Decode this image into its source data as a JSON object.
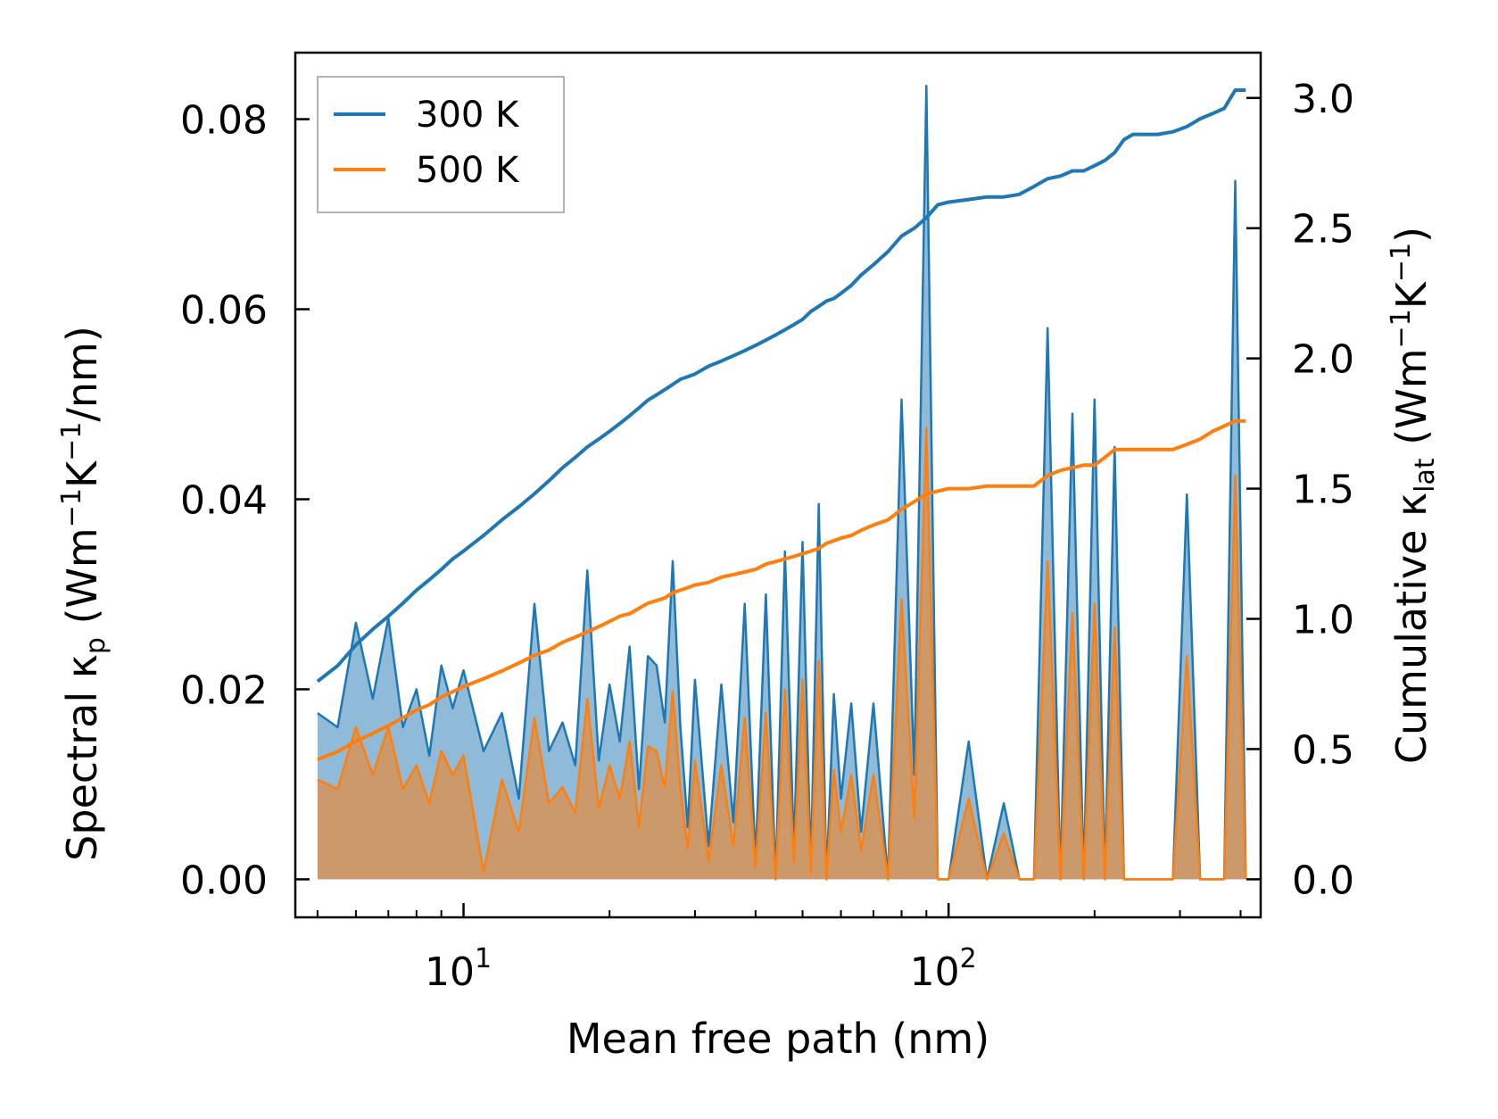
{
  "chart_data": {
    "type": "area",
    "xscale": "log",
    "xlim": [
      4.5,
      440
    ],
    "ylim_left": [
      -0.004,
      0.087
    ],
    "ylim_right": [
      -0.146,
      3.174
    ],
    "xlabel": "Mean free path (nm)",
    "ylabel_left": {
      "main": "Spectral κ",
      "sub": "p",
      "unit_pre": " (Wm",
      "exp1": "−1",
      "mid": "K",
      "exp2": "−1",
      "unit_post": "/nm)"
    },
    "ylabel_right": {
      "main": "Cumulative κ",
      "sub": "lat",
      "unit_pre": " (Wm",
      "exp1": "−1",
      "mid": "K",
      "exp2": "−1",
      "unit_post": ")"
    },
    "x_ticks": [
      {
        "value": 10,
        "base": "10",
        "exp": "1"
      },
      {
        "value": 100,
        "base": "10",
        "exp": "2"
      }
    ],
    "y_ticks_left": [
      "0.00",
      "0.02",
      "0.04",
      "0.06",
      "0.08"
    ],
    "y_ticks_right": [
      "0.0",
      "0.5",
      "1.0",
      "1.5",
      "2.0",
      "2.5",
      "3.0"
    ],
    "legend": {
      "position": "top-left",
      "entries": [
        {
          "label": "300 K",
          "color": "#1f77b4"
        },
        {
          "label": "500 K",
          "color": "#ff7f0e"
        }
      ]
    },
    "x": [
      5.0,
      5.5,
      6.0,
      6.5,
      7.0,
      7.5,
      8.0,
      8.5,
      9.0,
      9.5,
      10.0,
      11.0,
      12.0,
      13.0,
      14.0,
      15.0,
      16.0,
      17.0,
      18.0,
      19.0,
      20.0,
      21.0,
      22.0,
      23.0,
      24.0,
      25.0,
      26.0,
      27.0,
      28.0,
      29.0,
      30.0,
      32.0,
      34.0,
      36.0,
      38.0,
      40.0,
      42.0,
      44.0,
      46.0,
      48.0,
      50.0,
      52.0,
      54.0,
      56.0,
      58.0,
      60.0,
      63.0,
      66.0,
      70.0,
      75.0,
      80.0,
      85.0,
      90.0,
      95.0,
      100.0,
      110.0,
      120.0,
      130.0,
      140.0,
      150.0,
      160.0,
      170.0,
      180.0,
      190.0,
      200.0,
      210.0,
      220.0,
      230.0,
      240.0,
      250.0,
      270.0,
      290.0,
      310.0,
      330.0,
      350.0,
      370.0,
      390.0,
      410.0
    ],
    "series": [
      {
        "name": "300 K",
        "color": "#1f77b4",
        "spectral": [
          0.0175,
          0.016,
          0.027,
          0.019,
          0.0275,
          0.016,
          0.02,
          0.013,
          0.0225,
          0.018,
          0.022,
          0.0135,
          0.0175,
          0.0085,
          0.029,
          0.0135,
          0.0165,
          0.012,
          0.0325,
          0.0125,
          0.0205,
          0.0145,
          0.0245,
          0.0095,
          0.0235,
          0.0225,
          0.0165,
          0.0335,
          0.016,
          0.0055,
          0.021,
          0.0035,
          0.0205,
          0.006,
          0.029,
          0.002,
          0.03,
          0.0,
          0.0345,
          0.003,
          0.0355,
          0.001,
          0.0395,
          0.0,
          0.0195,
          0.0085,
          0.0185,
          0.005,
          0.0185,
          0.0,
          0.0505,
          0.011,
          0.0835,
          0.0,
          0.0,
          0.0145,
          0.0,
          0.008,
          0.0,
          0.0,
          0.058,
          0.0,
          0.049,
          0.0,
          0.0505,
          0.0,
          0.0455,
          0.0,
          0.0,
          0.0,
          0.0,
          0.0,
          0.0405,
          0.0,
          0.0,
          0.0,
          0.0735,
          0.0
        ],
        "cumulative": [
          0.76,
          0.82,
          0.9,
          0.96,
          1.01,
          1.06,
          1.11,
          1.15,
          1.19,
          1.23,
          1.26,
          1.32,
          1.38,
          1.43,
          1.48,
          1.53,
          1.58,
          1.62,
          1.66,
          1.69,
          1.72,
          1.75,
          1.78,
          1.81,
          1.84,
          1.86,
          1.88,
          1.9,
          1.92,
          1.93,
          1.94,
          1.97,
          1.99,
          2.01,
          2.03,
          2.05,
          2.07,
          2.09,
          2.11,
          2.13,
          2.15,
          2.18,
          2.2,
          2.22,
          2.23,
          2.25,
          2.28,
          2.32,
          2.36,
          2.41,
          2.47,
          2.5,
          2.54,
          2.59,
          2.6,
          2.61,
          2.62,
          2.62,
          2.63,
          2.66,
          2.69,
          2.7,
          2.72,
          2.72,
          2.74,
          2.76,
          2.79,
          2.84,
          2.86,
          2.86,
          2.86,
          2.87,
          2.89,
          2.92,
          2.94,
          2.96,
          3.03,
          3.03
        ]
      },
      {
        "name": "500 K",
        "color": "#ff7f0e",
        "spectral": [
          0.0105,
          0.0095,
          0.016,
          0.011,
          0.016,
          0.0095,
          0.012,
          0.008,
          0.0135,
          0.011,
          0.013,
          0.0008,
          0.0105,
          0.005,
          0.017,
          0.008,
          0.0097,
          0.007,
          0.019,
          0.0075,
          0.012,
          0.0085,
          0.0145,
          0.0055,
          0.014,
          0.0135,
          0.0097,
          0.0198,
          0.0095,
          0.0032,
          0.0125,
          0.002,
          0.012,
          0.0035,
          0.017,
          0.0012,
          0.0175,
          0.0,
          0.02,
          0.0018,
          0.021,
          0.0006,
          0.023,
          0.0,
          0.0115,
          0.005,
          0.011,
          0.003,
          0.011,
          0.0,
          0.0295,
          0.0065,
          0.0475,
          0.0,
          0.0,
          0.0085,
          0.0,
          0.0048,
          0.0,
          0.0,
          0.0335,
          0.0,
          0.028,
          0.0,
          0.029,
          0.0,
          0.0265,
          0.0,
          0.0,
          0.0,
          0.0,
          0.0,
          0.0235,
          0.0,
          0.0,
          0.0,
          0.0425,
          0.0
        ],
        "cumulative": [
          0.46,
          0.49,
          0.53,
          0.56,
          0.59,
          0.62,
          0.65,
          0.67,
          0.7,
          0.72,
          0.74,
          0.77,
          0.8,
          0.83,
          0.86,
          0.88,
          0.91,
          0.93,
          0.95,
          0.97,
          0.99,
          1.01,
          1.02,
          1.04,
          1.06,
          1.07,
          1.08,
          1.1,
          1.11,
          1.12,
          1.13,
          1.14,
          1.16,
          1.17,
          1.18,
          1.19,
          1.21,
          1.22,
          1.23,
          1.24,
          1.25,
          1.26,
          1.27,
          1.29,
          1.3,
          1.31,
          1.32,
          1.34,
          1.36,
          1.38,
          1.42,
          1.45,
          1.48,
          1.49,
          1.5,
          1.5,
          1.51,
          1.51,
          1.51,
          1.51,
          1.55,
          1.57,
          1.58,
          1.59,
          1.59,
          1.62,
          1.65,
          1.65,
          1.65,
          1.65,
          1.65,
          1.65,
          1.67,
          1.69,
          1.72,
          1.74,
          1.76,
          1.76
        ]
      }
    ]
  }
}
